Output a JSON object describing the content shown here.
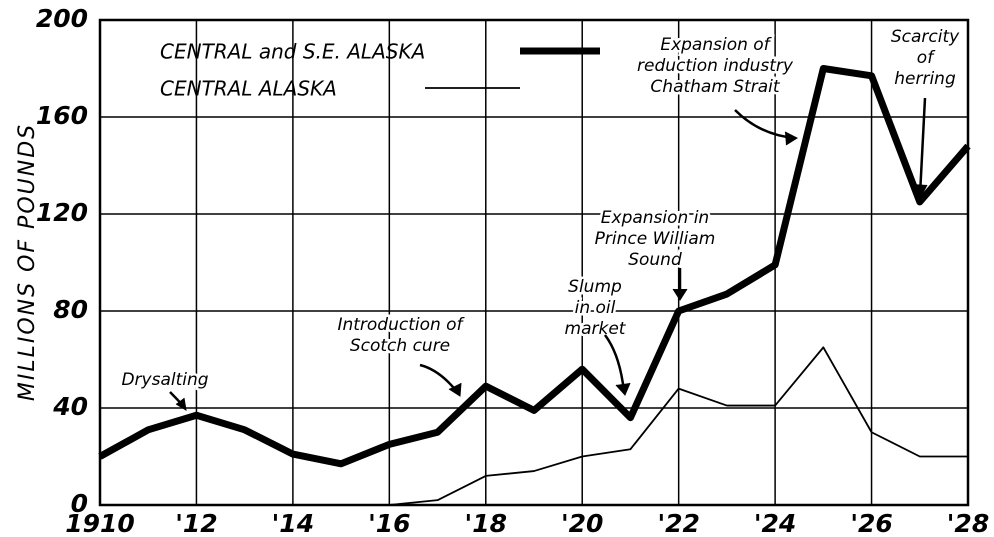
{
  "chart_data": {
    "type": "line",
    "ylabel": "MILLIONS OF POUNDS",
    "x": [
      1910,
      1911,
      1912,
      1913,
      1914,
      1915,
      1916,
      1917,
      1918,
      1919,
      1920,
      1921,
      1922,
      1923,
      1924,
      1925,
      1926,
      1927,
      1928
    ],
    "series": [
      {
        "name": "CENTRAL and S.E. ALASKA",
        "color": "#000000",
        "line_width": 7,
        "values": [
          20,
          31,
          37,
          31,
          21,
          17,
          25,
          30,
          49,
          39,
          56,
          36,
          80,
          87,
          99,
          180,
          177,
          125,
          148
        ]
      },
      {
        "name": "CENTRAL ALASKA",
        "color": "#000000",
        "line_width": 1.8,
        "values": [
          null,
          null,
          null,
          null,
          null,
          null,
          0,
          2,
          12,
          14,
          20,
          23,
          48,
          41,
          41,
          65,
          30,
          20,
          20
        ]
      }
    ],
    "xlim": [
      1910,
      1928
    ],
    "xticks": [
      1910,
      {
        "value": 1912,
        "label": "'12"
      },
      {
        "value": 1914,
        "label": "'14"
      },
      {
        "value": 1916,
        "label": "'16"
      },
      {
        "value": 1918,
        "label": "'18"
      },
      {
        "value": 1920,
        "label": "'20"
      },
      {
        "value": 1922,
        "label": "'22"
      },
      {
        "value": 1924,
        "label": "'24"
      },
      {
        "value": 1926,
        "label": "'26"
      },
      {
        "value": 1928,
        "label": "'28"
      }
    ],
    "ylim": [
      0,
      200
    ],
    "yticks": [
      0,
      40,
      80,
      120,
      160,
      200
    ],
    "grid": true,
    "annotations": [
      {
        "text": [
          "Drysalting"
        ]
      },
      {
        "text": [
          "Introduction of",
          "Scotch cure"
        ]
      },
      {
        "text": [
          "Slump",
          "in oil",
          "market"
        ]
      },
      {
        "text": [
          "Expansion in",
          "Prince William",
          "Sound"
        ]
      },
      {
        "text": [
          "Expansion of",
          "reduction industry",
          "Chatham Strait"
        ]
      },
      {
        "text": [
          "Scarcity",
          "of",
          "herring"
        ]
      }
    ]
  }
}
